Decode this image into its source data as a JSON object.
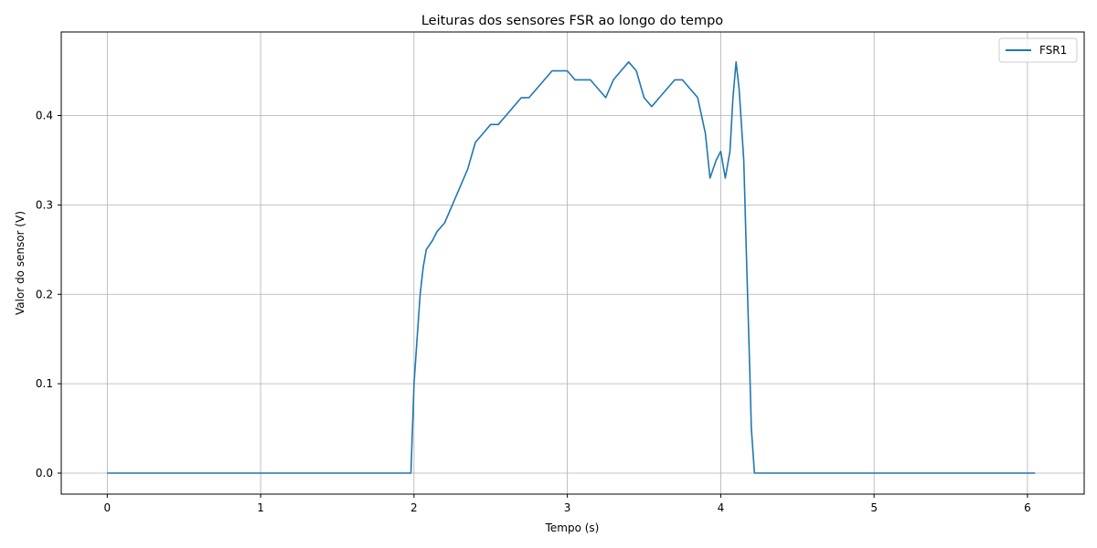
{
  "chart_data": {
    "type": "line",
    "title": "Leituras dos sensores FSR ao longo do tempo",
    "xlabel": "Tempo (s)",
    "ylabel": "Valor do sensor (V)",
    "xlim": [
      -0.3,
      6.37
    ],
    "ylim": [
      -0.0235,
      0.4935
    ],
    "xticks": [
      0,
      1,
      2,
      3,
      4,
      5,
      6
    ],
    "yticks": [
      0.0,
      0.1,
      0.2,
      0.3,
      0.4
    ],
    "xtick_labels": [
      "0",
      "1",
      "2",
      "3",
      "4",
      "5",
      "6"
    ],
    "ytick_labels": [
      "0.0",
      "0.1",
      "0.2",
      "0.3",
      "0.4"
    ],
    "grid": true,
    "legend": "top-right",
    "series": [
      {
        "name": "FSR1",
        "color": "#1f77b4",
        "points": [
          [
            0.0,
            0.0
          ],
          [
            0.1,
            0.0
          ],
          [
            0.2,
            0.0
          ],
          [
            0.3,
            0.0
          ],
          [
            0.4,
            0.0
          ],
          [
            0.5,
            0.0
          ],
          [
            0.6,
            0.0
          ],
          [
            0.7,
            0.0
          ],
          [
            0.8,
            0.0
          ],
          [
            0.9,
            0.0
          ],
          [
            1.0,
            0.0
          ],
          [
            1.2,
            0.0
          ],
          [
            1.4,
            0.0
          ],
          [
            1.6,
            0.0
          ],
          [
            1.8,
            0.0
          ],
          [
            1.98,
            0.0
          ],
          [
            2.0,
            0.1
          ],
          [
            2.02,
            0.15
          ],
          [
            2.04,
            0.2
          ],
          [
            2.06,
            0.23
          ],
          [
            2.08,
            0.25
          ],
          [
            2.12,
            0.26
          ],
          [
            2.15,
            0.27
          ],
          [
            2.2,
            0.28
          ],
          [
            2.25,
            0.3
          ],
          [
            2.3,
            0.32
          ],
          [
            2.35,
            0.34
          ],
          [
            2.4,
            0.37
          ],
          [
            2.45,
            0.38
          ],
          [
            2.5,
            0.39
          ],
          [
            2.55,
            0.39
          ],
          [
            2.6,
            0.4
          ],
          [
            2.65,
            0.41
          ],
          [
            2.7,
            0.42
          ],
          [
            2.75,
            0.42
          ],
          [
            2.8,
            0.43
          ],
          [
            2.85,
            0.44
          ],
          [
            2.9,
            0.45
          ],
          [
            2.95,
            0.45
          ],
          [
            3.0,
            0.45
          ],
          [
            3.05,
            0.44
          ],
          [
            3.1,
            0.44
          ],
          [
            3.15,
            0.44
          ],
          [
            3.2,
            0.43
          ],
          [
            3.25,
            0.42
          ],
          [
            3.3,
            0.44
          ],
          [
            3.35,
            0.45
          ],
          [
            3.4,
            0.46
          ],
          [
            3.45,
            0.45
          ],
          [
            3.5,
            0.42
          ],
          [
            3.55,
            0.41
          ],
          [
            3.6,
            0.42
          ],
          [
            3.65,
            0.43
          ],
          [
            3.7,
            0.44
          ],
          [
            3.75,
            0.44
          ],
          [
            3.8,
            0.43
          ],
          [
            3.85,
            0.42
          ],
          [
            3.9,
            0.38
          ],
          [
            3.93,
            0.33
          ],
          [
            3.97,
            0.35
          ],
          [
            4.0,
            0.36
          ],
          [
            4.03,
            0.33
          ],
          [
            4.06,
            0.36
          ],
          [
            4.08,
            0.42
          ],
          [
            4.1,
            0.46
          ],
          [
            4.12,
            0.43
          ],
          [
            4.15,
            0.35
          ],
          [
            4.17,
            0.23
          ],
          [
            4.19,
            0.11
          ],
          [
            4.2,
            0.05
          ],
          [
            4.22,
            0.0
          ],
          [
            4.3,
            0.0
          ],
          [
            4.5,
            0.0
          ],
          [
            4.7,
            0.0
          ],
          [
            4.9,
            0.0
          ],
          [
            5.1,
            0.0
          ],
          [
            5.3,
            0.0
          ],
          [
            5.5,
            0.0
          ],
          [
            5.7,
            0.0
          ],
          [
            5.9,
            0.0
          ],
          [
            6.05,
            0.0
          ]
        ]
      }
    ]
  }
}
